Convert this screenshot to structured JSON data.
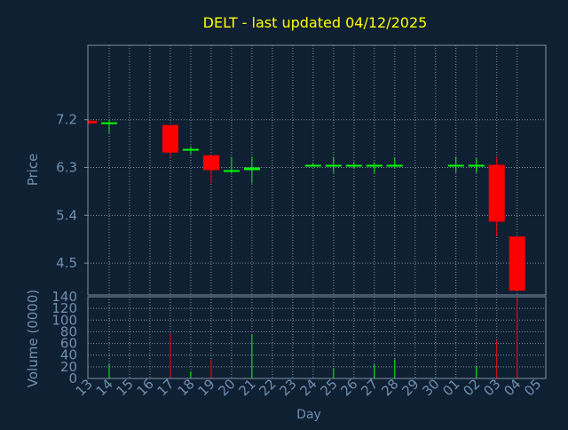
{
  "chart_data": {
    "type": "candlestick",
    "title": "DELT - last updated 04/12/2025",
    "xlabel": "Day",
    "price_panel": {
      "ylabel": "Price",
      "yticks": [
        "7.2",
        "6.3",
        "5.4",
        "4.5"
      ],
      "ylim": [
        3.9,
        8.6
      ]
    },
    "volume_panel": {
      "ylabel": "Volume (0000)",
      "yticks": [
        "140",
        "120",
        "100",
        "80",
        "60",
        "40",
        "20",
        "0"
      ],
      "ylim": [
        0,
        140
      ]
    },
    "x_tick_labels": [
      "13",
      "14",
      "15",
      "16",
      "17",
      "18",
      "19",
      "20",
      "21",
      "22",
      "23",
      "24",
      "25",
      "26",
      "27",
      "28",
      "29",
      "30",
      "01",
      "02",
      "03",
      "04",
      "05"
    ],
    "grid": true,
    "colors": {
      "up": "#00ff00",
      "down": "#ff0000",
      "title": "#ffff00",
      "axis_text": "#6f8fb0",
      "frame": "#7f8fa5",
      "grid": "#7f8fa5",
      "background": "#0f2033"
    },
    "candles": [
      {
        "day": "13",
        "open": 7.18,
        "high": 7.2,
        "low": 7.12,
        "close": 7.13
      },
      {
        "day": "14",
        "open": 7.15,
        "high": 7.2,
        "low": 6.95,
        "close": 7.15
      },
      {
        "day": "17",
        "open": 7.1,
        "high": 7.1,
        "low": 6.5,
        "close": 6.58
      },
      {
        "day": "18",
        "open": 6.65,
        "high": 6.7,
        "low": 6.55,
        "close": 6.65
      },
      {
        "day": "19",
        "open": 6.53,
        "high": 6.53,
        "low": 6.0,
        "close": 6.25
      },
      {
        "day": "20",
        "open": 6.25,
        "high": 6.5,
        "low": 6.2,
        "close": 6.25
      },
      {
        "day": "21",
        "open": 6.25,
        "high": 6.5,
        "low": 6.0,
        "close": 6.3
      },
      {
        "day": "24",
        "open": 6.35,
        "high": 6.38,
        "low": 6.33,
        "close": 6.35
      },
      {
        "day": "25",
        "open": 6.35,
        "high": 6.5,
        "low": 6.2,
        "close": 6.35
      },
      {
        "day": "26",
        "open": 6.35,
        "high": 6.4,
        "low": 6.28,
        "close": 6.35
      },
      {
        "day": "27",
        "open": 6.35,
        "high": 6.4,
        "low": 6.2,
        "close": 6.35
      },
      {
        "day": "28",
        "open": 6.35,
        "high": 6.48,
        "low": 6.3,
        "close": 6.35
      },
      {
        "day": "01",
        "open": 6.35,
        "high": 6.5,
        "low": 6.2,
        "close": 6.35
      },
      {
        "day": "02",
        "open": 6.35,
        "high": 6.48,
        "low": 6.2,
        "close": 6.35
      },
      {
        "day": "03",
        "open": 6.35,
        "high": 6.5,
        "low": 5.0,
        "close": 5.28
      },
      {
        "day": "04",
        "open": 5.0,
        "high": 5.0,
        "low": 3.98,
        "close": 3.98
      }
    ],
    "volumes": [
      {
        "day": "14",
        "value": 25,
        "color": "up"
      },
      {
        "day": "17",
        "value": 78,
        "color": "down"
      },
      {
        "day": "18",
        "value": 12,
        "color": "up"
      },
      {
        "day": "19",
        "value": 33,
        "color": "down"
      },
      {
        "day": "21",
        "value": 75,
        "color": "up"
      },
      {
        "day": "25",
        "value": 18,
        "color": "up"
      },
      {
        "day": "27",
        "value": 25,
        "color": "up"
      },
      {
        "day": "28",
        "value": 33,
        "color": "up"
      },
      {
        "day": "02",
        "value": 22,
        "color": "up"
      },
      {
        "day": "03",
        "value": 65,
        "color": "down"
      },
      {
        "day": "04",
        "value": 140,
        "color": "down"
      }
    ]
  }
}
